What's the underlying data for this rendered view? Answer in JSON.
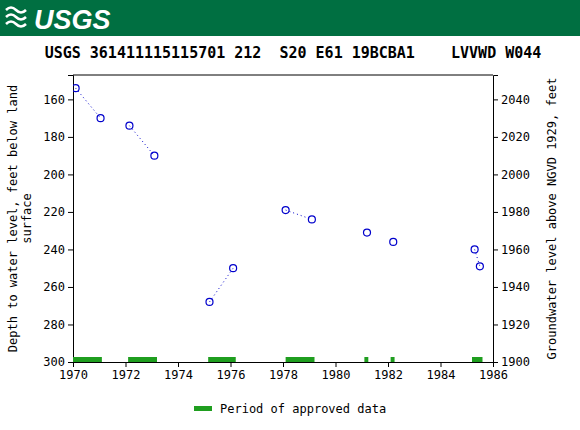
{
  "chart_data": {
    "type": "scatter",
    "logo_text": "USGS",
    "title": "USGS 361411115115701 212  S20 E61 19BCBA1    LVVWD W044",
    "ylabel": [
      "Depth to water level, feet below land",
      "surface"
    ],
    "y2label": "Groundwater level above NGVD 1929, feet",
    "x": [
      1970.1,
      1971.05,
      1971.6,
      1972.15,
      1973.1,
      1974.2,
      1975.2,
      1976.1,
      1977.1,
      1978.1,
      1979.1,
      1980.1,
      1981.2,
      1981.7,
      1982.2,
      1983.7,
      1985.3,
      1985.5
    ],
    "series": [
      {
        "name": "Depth to water level",
        "color": "#0000cc",
        "marker": "open-circle",
        "line_style": "dotted",
        "values": [
          154,
          170,
          null,
          174,
          190,
          null,
          268,
          250,
          null,
          219,
          224,
          null,
          231,
          null,
          236,
          null,
          240,
          249
        ]
      }
    ],
    "approved_periods": {
      "name": "Period of approved data",
      "color": "#1f9e1f",
      "ranges": [
        [
          1970.0,
          1971.1
        ],
        [
          1972.1,
          1973.2
        ],
        [
          1975.15,
          1976.2
        ],
        [
          1978.1,
          1979.2
        ],
        [
          1981.1,
          1981.25
        ],
        [
          1982.1,
          1982.25
        ],
        [
          1985.2,
          1985.6
        ]
      ]
    },
    "xlim": [
      1970,
      1986
    ],
    "xticks": [
      1970,
      1972,
      1974,
      1976,
      1978,
      1980,
      1982,
      1984,
      1986
    ],
    "ylim": [
      147,
      300
    ],
    "yticks": [
      160,
      180,
      200,
      220,
      240,
      260,
      280,
      300
    ],
    "y2lim": [
      2053,
      1900
    ],
    "y2ticks": [
      1900,
      1920,
      1940,
      1960,
      1980,
      2000,
      2020,
      2040
    ],
    "legend": "bottom"
  }
}
